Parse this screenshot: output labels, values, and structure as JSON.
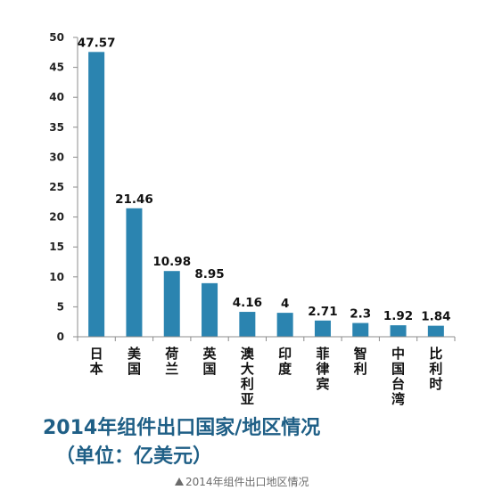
{
  "chart_data": {
    "type": "bar",
    "title": "2014年组件出口国家/地区情况",
    "subtitle": "（单位：亿美元）",
    "categories": [
      "日本",
      "美国",
      "荷兰",
      "英国",
      "澳大利亚",
      "印度",
      "菲律宾",
      "智利",
      "中国台湾",
      "比利时"
    ],
    "values": [
      47.57,
      21.46,
      10.98,
      8.95,
      4.16,
      4,
      2.71,
      2.3,
      1.92,
      1.84
    ],
    "value_labels": [
      "47.57",
      "21.46",
      "10.98",
      "8.95",
      "4.16",
      "4",
      "2.71",
      "2.3",
      "1.92",
      "1.84"
    ],
    "ylim": [
      0,
      50
    ],
    "yticks": [
      0,
      5,
      10,
      15,
      20,
      25,
      30,
      35,
      40,
      45,
      50
    ],
    "xlabel": "",
    "ylabel": "",
    "grid": false,
    "bar_color": "#2b84b0",
    "title_color": "#1f5f86"
  },
  "caption": {
    "icon": "triangle-up-icon",
    "text": "2014年组件出口地区情况"
  }
}
